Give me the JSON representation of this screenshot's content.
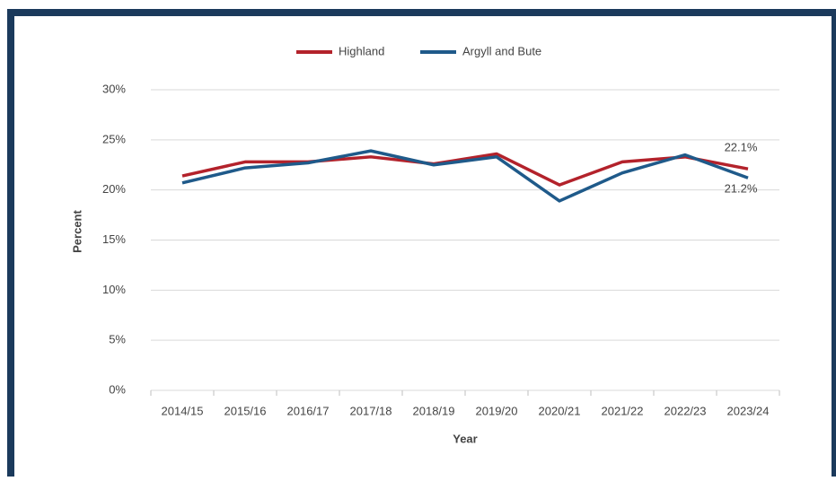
{
  "chart_data": {
    "type": "line",
    "categories": [
      "2014/15",
      "2015/16",
      "2016/17",
      "2017/18",
      "2018/19",
      "2019/20",
      "2020/21",
      "2021/22",
      "2022/23",
      "2023/24"
    ],
    "series": [
      {
        "name": "Highland",
        "color": "#b3222b",
        "values": [
          21.4,
          22.8,
          22.8,
          23.3,
          22.6,
          23.6,
          20.5,
          22.8,
          23.3,
          22.1
        ],
        "value_labels": [
          null,
          null,
          null,
          null,
          null,
          null,
          null,
          null,
          null,
          "22.1%"
        ]
      },
      {
        "name": "Argyll and Bute",
        "color": "#1f5a8a",
        "values": [
          20.7,
          22.2,
          22.7,
          23.9,
          22.5,
          23.3,
          18.9,
          21.7,
          23.5,
          21.2
        ],
        "value_labels": [
          null,
          null,
          null,
          null,
          null,
          null,
          null,
          null,
          null,
          "21.2%"
        ]
      }
    ],
    "ylim": [
      0,
      30
    ],
    "yticks": [
      {
        "value": 0,
        "label": "0%"
      },
      {
        "value": 5,
        "label": "5%"
      },
      {
        "value": 10,
        "label": "10%"
      },
      {
        "value": 15,
        "label": "15%"
      },
      {
        "value": 20,
        "label": "20%"
      },
      {
        "value": 25,
        "label": "25%"
      },
      {
        "value": 30,
        "label": "30%"
      }
    ],
    "xlabel": "Year",
    "ylabel": "Percent",
    "grid": true,
    "legend": "top"
  }
}
